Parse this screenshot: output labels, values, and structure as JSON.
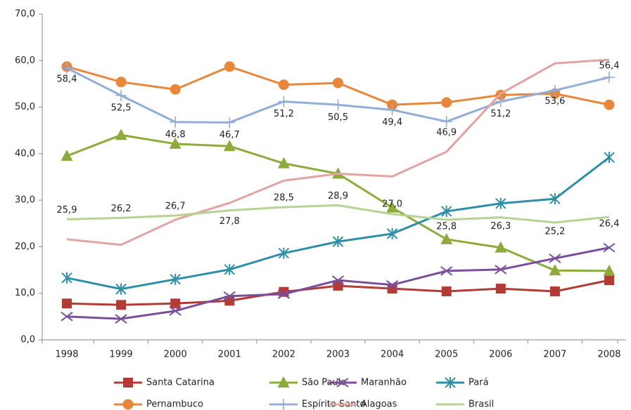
{
  "chart_data": {
    "type": "line",
    "categories": [
      "1998",
      "1999",
      "2000",
      "2001",
      "2002",
      "2003",
      "2004",
      "2005",
      "2006",
      "2007",
      "2008"
    ],
    "ylim": [
      0,
      70
    ],
    "yticks": [
      {
        "value": 0,
        "label": "0,0"
      },
      {
        "value": 10,
        "label": "10,0"
      },
      {
        "value": 20,
        "label": "20,0"
      },
      {
        "value": 30,
        "label": "30,0"
      },
      {
        "value": 40,
        "label": "40,0"
      },
      {
        "value": 50,
        "label": "50,0"
      },
      {
        "value": 60,
        "label": "60,0"
      },
      {
        "value": 70,
        "label": "70,0"
      }
    ],
    "legend": "bottom",
    "series": [
      {
        "name": "Santa Catarina",
        "color": "#b23b36",
        "marker": "square",
        "values": [
          7.8,
          7.5,
          7.8,
          8.4,
          10.3,
          11.6,
          11.0,
          10.4,
          11.0,
          10.4,
          12.8
        ]
      },
      {
        "name": "São Paulo",
        "color": "#8dab3a",
        "marker": "triangle",
        "values": [
          39.5,
          44.0,
          42.1,
          41.6,
          37.9,
          35.7,
          28.4,
          21.6,
          19.8,
          14.9,
          14.8
        ]
      },
      {
        "name": "Maranhão",
        "color": "#7a4f9a",
        "marker": "x",
        "values": [
          5.0,
          4.5,
          6.2,
          9.4,
          9.8,
          12.8,
          11.8,
          14.8,
          15.1,
          17.5,
          19.8
        ]
      },
      {
        "name": "Pará",
        "color": "#2f8ea7",
        "marker": "asterisk",
        "values": [
          13.3,
          10.9,
          13.0,
          15.1,
          18.6,
          21.1,
          22.8,
          27.6,
          29.3,
          30.3,
          39.2
        ]
      },
      {
        "name": "Pernambuco",
        "color": "#e8873a",
        "marker": "circle",
        "values": [
          58.7,
          55.4,
          53.8,
          58.7,
          54.8,
          55.2,
          50.5,
          51.0,
          52.6,
          52.9,
          50.5
        ]
      },
      {
        "name": "Espírito Santo",
        "color": "#93acd8",
        "marker": "plus",
        "values": [
          58.4,
          52.5,
          46.8,
          46.7,
          51.2,
          50.5,
          49.4,
          46.9,
          51.2,
          53.6,
          56.4
        ],
        "value_labels": [
          "58,4",
          "52,5",
          "46,8",
          "46,7",
          "51,2",
          "50,5",
          "49,4",
          "46,9",
          "51,2",
          "53,6",
          "56,4"
        ]
      },
      {
        "name": "Alagoas",
        "color": "#e2a3a3",
        "marker": "none",
        "values": [
          21.6,
          20.4,
          25.8,
          29.4,
          34.2,
          35.7,
          35.1,
          40.4,
          52.9,
          59.4,
          60.2
        ]
      },
      {
        "name": "Brasil",
        "color": "#b7d393",
        "marker": "none",
        "values": [
          25.9,
          26.2,
          26.7,
          27.8,
          28.5,
          28.9,
          27.0,
          25.8,
          26.3,
          25.2,
          26.4
        ],
        "value_labels": [
          "25,9",
          "26,2",
          "26,7",
          "27,8",
          "28,5",
          "28,9",
          "27,0",
          "25,8",
          "26,3",
          "25,2",
          "26,4"
        ]
      }
    ]
  }
}
